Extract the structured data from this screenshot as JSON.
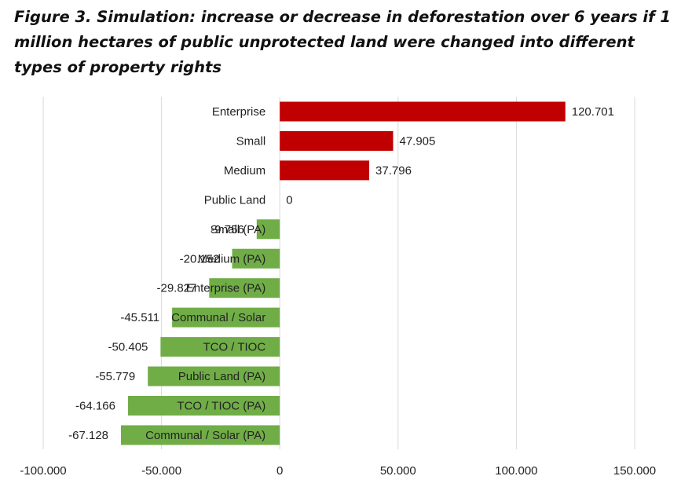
{
  "chart_data": {
    "type": "bar",
    "orientation": "horizontal",
    "title": "Figure 3. Simulation: increase or decrease in deforestation over 6 years if 1 million hectares of public unprotected land were changed into different types of property rights",
    "categories": [
      "Enterprise",
      "Small",
      "Medium",
      "Public Land",
      "Small (PA)",
      "Medium (PA)",
      "Enterprise (PA)",
      "Communal / Solar",
      "TCO / TIOC",
      "Public Land (PA)",
      "TCO / TIOC (PA)",
      "Communal / Solar (PA)"
    ],
    "values": [
      120.701,
      47.905,
      37.796,
      0,
      -9.756,
      -20.152,
      -29.827,
      -45.511,
      -50.405,
      -55.779,
      -64.166,
      -67.128
    ],
    "value_labels": [
      "120.701",
      "47.905",
      "37.796",
      "0",
      "-9.756",
      "-20.152",
      "-29.827",
      "-45.511",
      "-50.405",
      "-55.779",
      "-64.166",
      "-67.128"
    ],
    "xlim": [
      -100,
      150
    ],
    "xticks": [
      -100,
      -50,
      0,
      50,
      100,
      150
    ],
    "xtick_labels": [
      "-100.000",
      "-50.000",
      "0",
      "50.000",
      "100.000",
      "150.000"
    ],
    "xlabel": "",
    "ylabel": "",
    "grid": "vertical",
    "colors": {
      "positive": "#C00000",
      "negative": "#70AD47",
      "grid": "#D9D9D9"
    }
  }
}
